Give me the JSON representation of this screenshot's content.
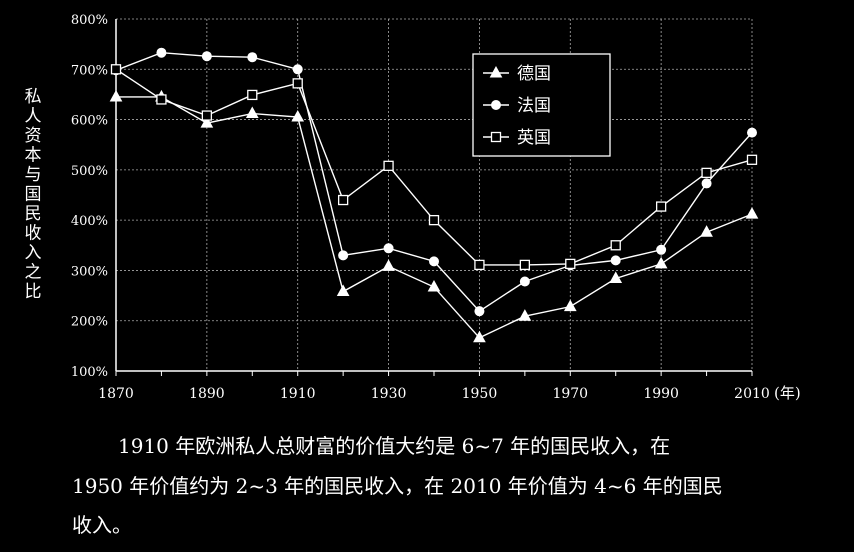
{
  "chart_data": {
    "type": "line",
    "ylabel": "私人资本与国民收入之比",
    "x_unit_label": "(年)",
    "x_ticks": [
      "1870",
      "1890",
      "1910",
      "1930",
      "1950",
      "1970",
      "1990",
      "2010"
    ],
    "y_ticks": [
      "100%",
      "200%",
      "300%",
      "400%",
      "500%",
      "600%",
      "700%",
      "800%"
    ],
    "xlim": [
      1870,
      2010
    ],
    "ylim": [
      100,
      800
    ],
    "grid": true,
    "legend_position": "top-right",
    "series": [
      {
        "name": "德国",
        "marker": "triangle",
        "x": [
          1870,
          1880,
          1890,
          1900,
          1910,
          1920,
          1930,
          1940,
          1950,
          1960,
          1970,
          1980,
          1990,
          2000,
          2010
        ],
        "values": [
          645,
          645,
          593,
          612,
          605,
          258,
          308,
          267,
          166,
          209,
          228,
          284,
          313,
          376,
          412
        ]
      },
      {
        "name": "法国",
        "marker": "circle",
        "x": [
          1870,
          1880,
          1890,
          1900,
          1910,
          1920,
          1930,
          1940,
          1950,
          1960,
          1970,
          1980,
          1990,
          2000,
          2010
        ],
        "values": [
          698,
          733,
          726,
          724,
          700,
          330,
          344,
          318,
          219,
          278,
          310,
          320,
          341,
          473,
          574
        ]
      },
      {
        "name": "英国",
        "marker": "square",
        "x": [
          1870,
          1880,
          1890,
          1900,
          1910,
          1920,
          1930,
          1940,
          1950,
          1960,
          1970,
          1980,
          1990,
          2000,
          2010
        ],
        "values": [
          700,
          640,
          608,
          649,
          672,
          440,
          508,
          400,
          311,
          311,
          313,
          350,
          427,
          494,
          520
        ]
      }
    ]
  },
  "caption": {
    "line1": "1910 年欧洲私人总财富的价值大约是 6~7 年的国民收入，在",
    "line2": "1950 年价值约为 2~3 年的国民收入，在 2010 年价值为 4~6 年的国民",
    "line3": "收入。"
  }
}
